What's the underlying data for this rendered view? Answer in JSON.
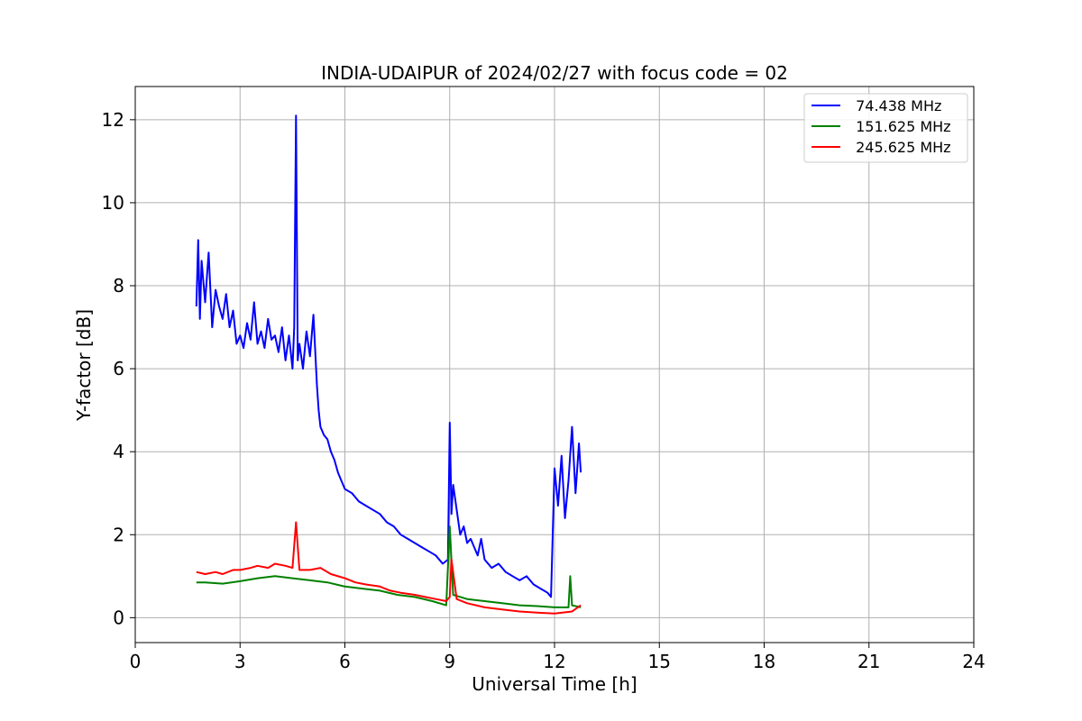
{
  "chart_data": {
    "type": "line",
    "title": "INDIA-UDAIPUR of 2024/02/27 with focus code = 02",
    "xlabel": "Universal Time [h]",
    "ylabel": "Y-factor [dB]",
    "xlim": [
      0,
      24
    ],
    "ylim": [
      -0.6,
      12.8
    ],
    "xticks": [
      0,
      3,
      6,
      9,
      12,
      15,
      18,
      21,
      24
    ],
    "yticks": [
      0,
      2,
      4,
      6,
      8,
      10,
      12
    ],
    "xtick_labels": [
      "0",
      "3",
      "6",
      "9",
      "12",
      "15",
      "18",
      "21",
      "24"
    ],
    "ytick_labels": [
      "0",
      "2",
      "4",
      "6",
      "8",
      "10",
      "12"
    ],
    "grid": true,
    "legend_position": "top-right",
    "series": [
      {
        "name": " 74.438 MHz",
        "color": "#0000ff",
        "x": [
          1.75,
          1.8,
          1.85,
          1.9,
          2.0,
          2.1,
          2.2,
          2.3,
          2.4,
          2.5,
          2.6,
          2.7,
          2.8,
          2.9,
          3.0,
          3.1,
          3.2,
          3.3,
          3.4,
          3.5,
          3.6,
          3.7,
          3.8,
          3.9,
          4.0,
          4.1,
          4.2,
          4.3,
          4.4,
          4.5,
          4.55,
          4.6,
          4.65,
          4.7,
          4.8,
          4.9,
          5.0,
          5.1,
          5.2,
          5.25,
          5.3,
          5.4,
          5.5,
          5.6,
          5.7,
          5.8,
          5.9,
          6.0,
          6.2,
          6.4,
          6.6,
          6.8,
          7.0,
          7.2,
          7.4,
          7.6,
          7.8,
          8.0,
          8.2,
          8.4,
          8.6,
          8.8,
          8.95,
          9.0,
          9.05,
          9.1,
          9.2,
          9.3,
          9.4,
          9.5,
          9.6,
          9.7,
          9.8,
          9.9,
          10.0,
          10.2,
          10.4,
          10.6,
          10.8,
          11.0,
          11.2,
          11.4,
          11.6,
          11.8,
          11.9,
          12.0,
          12.1,
          12.2,
          12.3,
          12.4,
          12.5,
          12.6,
          12.7,
          12.75
        ],
        "y": [
          7.5,
          9.1,
          7.2,
          8.6,
          7.6,
          8.8,
          7.0,
          7.9,
          7.5,
          7.2,
          7.8,
          7.0,
          7.4,
          6.6,
          6.8,
          6.5,
          7.1,
          6.7,
          7.6,
          6.6,
          6.9,
          6.5,
          7.2,
          6.7,
          6.8,
          6.4,
          7.0,
          6.2,
          6.8,
          6.0,
          7.0,
          12.1,
          6.2,
          6.6,
          6.0,
          6.9,
          6.3,
          7.3,
          5.6,
          5.0,
          4.6,
          4.4,
          4.3,
          4.0,
          3.8,
          3.5,
          3.3,
          3.1,
          3.0,
          2.8,
          2.7,
          2.6,
          2.5,
          2.3,
          2.2,
          2.0,
          1.9,
          1.8,
          1.7,
          1.6,
          1.5,
          1.3,
          1.4,
          4.7,
          2.5,
          3.2,
          2.6,
          2.0,
          2.2,
          1.8,
          1.9,
          1.7,
          1.5,
          1.9,
          1.4,
          1.2,
          1.3,
          1.1,
          1.0,
          0.9,
          1.0,
          0.8,
          0.7,
          0.6,
          0.5,
          3.6,
          2.7,
          3.9,
          2.4,
          3.3,
          4.6,
          3.0,
          4.2,
          3.5
        ]
      },
      {
        "name": " 151.625 MHz",
        "color": "#008000",
        "x": [
          1.75,
          2.0,
          2.5,
          3.0,
          3.5,
          4.0,
          4.5,
          5.0,
          5.5,
          6.0,
          6.5,
          7.0,
          7.5,
          8.0,
          8.5,
          8.9,
          9.0,
          9.1,
          9.5,
          10.0,
          10.5,
          11.0,
          11.5,
          12.0,
          12.4,
          12.45,
          12.5,
          12.75
        ],
        "y": [
          0.85,
          0.85,
          0.82,
          0.88,
          0.95,
          1.0,
          0.95,
          0.9,
          0.85,
          0.75,
          0.7,
          0.65,
          0.55,
          0.5,
          0.4,
          0.3,
          2.2,
          0.55,
          0.45,
          0.4,
          0.35,
          0.3,
          0.28,
          0.25,
          0.25,
          1.0,
          0.3,
          0.25
        ]
      },
      {
        "name": " 245.625 MHz",
        "color": "#ff0000",
        "x": [
          1.75,
          2.0,
          2.3,
          2.5,
          2.8,
          3.0,
          3.3,
          3.5,
          3.8,
          4.0,
          4.3,
          4.5,
          4.6,
          4.7,
          5.0,
          5.3,
          5.6,
          6.0,
          6.3,
          6.6,
          7.0,
          7.3,
          7.6,
          8.0,
          8.3,
          8.6,
          8.9,
          9.0,
          9.05,
          9.2,
          9.5,
          10.0,
          10.5,
          11.0,
          11.5,
          12.0,
          12.5,
          12.75
        ],
        "y": [
          1.1,
          1.05,
          1.1,
          1.05,
          1.15,
          1.15,
          1.2,
          1.25,
          1.2,
          1.3,
          1.25,
          1.2,
          2.3,
          1.15,
          1.15,
          1.2,
          1.05,
          0.95,
          0.85,
          0.8,
          0.75,
          0.65,
          0.6,
          0.55,
          0.5,
          0.45,
          0.4,
          0.5,
          1.4,
          0.45,
          0.35,
          0.25,
          0.2,
          0.15,
          0.12,
          0.1,
          0.15,
          0.3
        ]
      }
    ]
  }
}
